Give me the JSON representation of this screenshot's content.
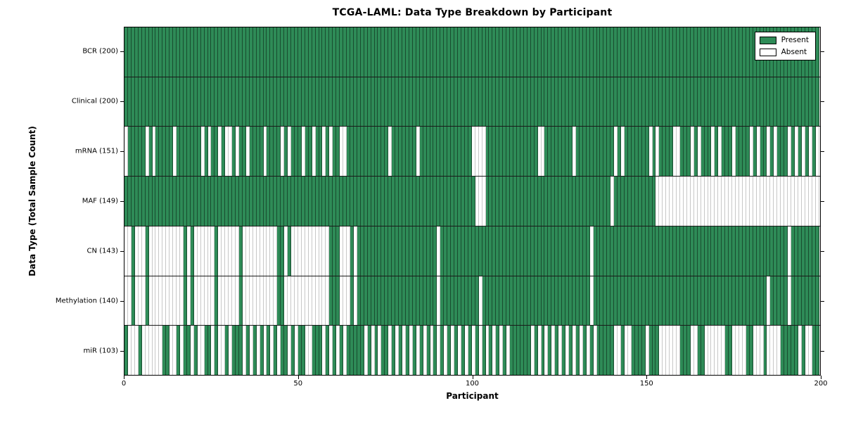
{
  "title": "TCGA-LAML: Data Type Breakdown by Participant",
  "xlabel": "Participant",
  "ylabel": "Data Type (Total Sample Count)",
  "legend": {
    "present_label": "Present",
    "absent_label": "Absent"
  },
  "colors": {
    "present": "#2e8b57",
    "absent": "#ffffff"
  },
  "x_ticks": [
    "0",
    "50",
    "100",
    "150",
    "200"
  ],
  "chart_data": {
    "type": "heatmap",
    "title": "TCGA-LAML: Data Type Breakdown by Participant",
    "xlabel": "Participant",
    "ylabel": "Data Type (Total Sample Count)",
    "x_range": [
      0,
      200
    ],
    "n_participants": 200,
    "legend_entries": [
      "Present",
      "Absent"
    ],
    "legend_position": "upper right",
    "cell_states": [
      "present",
      "absent"
    ],
    "rows": [
      {
        "data_type": "BCR",
        "label": "BCR (200)",
        "present_count": 200,
        "mode": "absent",
        "indices": []
      },
      {
        "data_type": "Clinical",
        "label": "Clinical (200)",
        "present_count": 200,
        "mode": "absent",
        "indices": []
      },
      {
        "data_type": "mRNA",
        "label": "mRNA (151)",
        "present_count": 151,
        "mode": "absent",
        "indices": [
          0,
          6,
          8,
          14,
          22,
          24,
          27,
          29,
          30,
          32,
          35,
          40,
          45,
          47,
          51,
          54,
          57,
          59,
          62,
          63,
          76,
          84,
          "100-103",
          119,
          120,
          129,
          141,
          143,
          151,
          153,
          "158-159",
          163,
          165,
          169,
          171,
          175,
          180,
          182,
          185,
          187,
          191,
          193,
          195,
          197,
          199
        ]
      },
      {
        "data_type": "MAF",
        "label": "MAF (149)",
        "present_count": 149,
        "mode": "absent",
        "indices": [
          "101-103",
          140,
          "153-199"
        ]
      },
      {
        "data_type": "CN",
        "label": "CN (143)",
        "present_count": 143,
        "mode": "absent",
        "indices": [
          "0-1",
          3,
          "4-5",
          "7-16",
          18,
          "20-25",
          "27-32",
          "34-43",
          46,
          "48-58",
          "62-64",
          66,
          90,
          134,
          191
        ]
      },
      {
        "data_type": "Methylation",
        "label": "Methylation (140)",
        "present_count": 140,
        "mode": "absent",
        "indices": [
          "0-1",
          3,
          "4-5",
          "7-16",
          18,
          "20-25",
          "27-32",
          "34-43",
          "46-58",
          "62-64",
          66,
          90,
          102,
          134,
          185,
          191
        ]
      },
      {
        "data_type": "miR",
        "label": "miR (103)",
        "present_count": 103,
        "mode": "present",
        "indices": [
          0,
          4,
          "11-12",
          15,
          "17-18",
          20,
          "23-24",
          26,
          29,
          "31-33",
          35,
          37,
          39,
          41,
          43,
          "45-46",
          48,
          "50-51",
          "54-56",
          58,
          60,
          62,
          "64-68",
          70,
          72,
          "74-75",
          77,
          79,
          81,
          83,
          85,
          87,
          89,
          91,
          93,
          95,
          97,
          99,
          101,
          103,
          105,
          107,
          109,
          "111-116",
          118,
          120,
          122,
          124,
          126,
          128,
          130,
          132,
          134,
          "136-140",
          143,
          "146-149",
          "151-153",
          "160-162",
          "165-166",
          "173-174",
          "179-180",
          184,
          "189-193",
          195,
          "198-199"
        ]
      }
    ]
  }
}
